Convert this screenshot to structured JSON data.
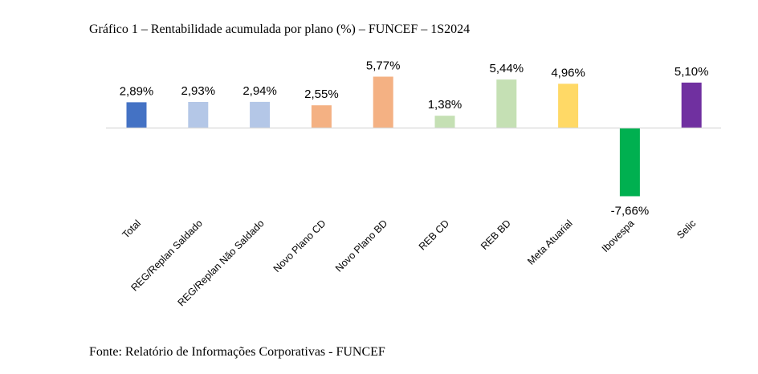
{
  "caption": "Gráfico 1 – Rentabilidade acumulada por plano (%) – FUNCEF – 1S2024",
  "source": "Fonte: Relatório de Informações Corporativas - FUNCEF",
  "chart_data": {
    "type": "bar",
    "title": "",
    "xlabel": "",
    "ylabel": "",
    "categories": [
      "Total",
      "REG/Replan Saldado",
      "REG/Replan Não Saldado",
      "Novo Plano CD",
      "Novo Plano BD",
      "REB CD",
      "REB BD",
      "Meta Atuarial",
      "Ibovespa",
      "Selic"
    ],
    "values": [
      2.89,
      2.93,
      2.94,
      2.55,
      5.77,
      1.38,
      5.44,
      4.96,
      -7.66,
      5.1
    ],
    "data_labels": [
      "2,89%",
      "2,93%",
      "2,94%",
      "2,55%",
      "5,77%",
      "1,38%",
      "5,44%",
      "4,96%",
      "-7,66%",
      "5,10%"
    ],
    "colors": [
      "#4472C4",
      "#B4C7E7",
      "#B4C7E7",
      "#F4B183",
      "#F4B183",
      "#C5E0B4",
      "#C5E0B4",
      "#FFD966",
      "#00B050",
      "#7030A0"
    ],
    "ylim": [
      -7.66,
      5.77
    ],
    "grid": false,
    "legend": "none"
  }
}
